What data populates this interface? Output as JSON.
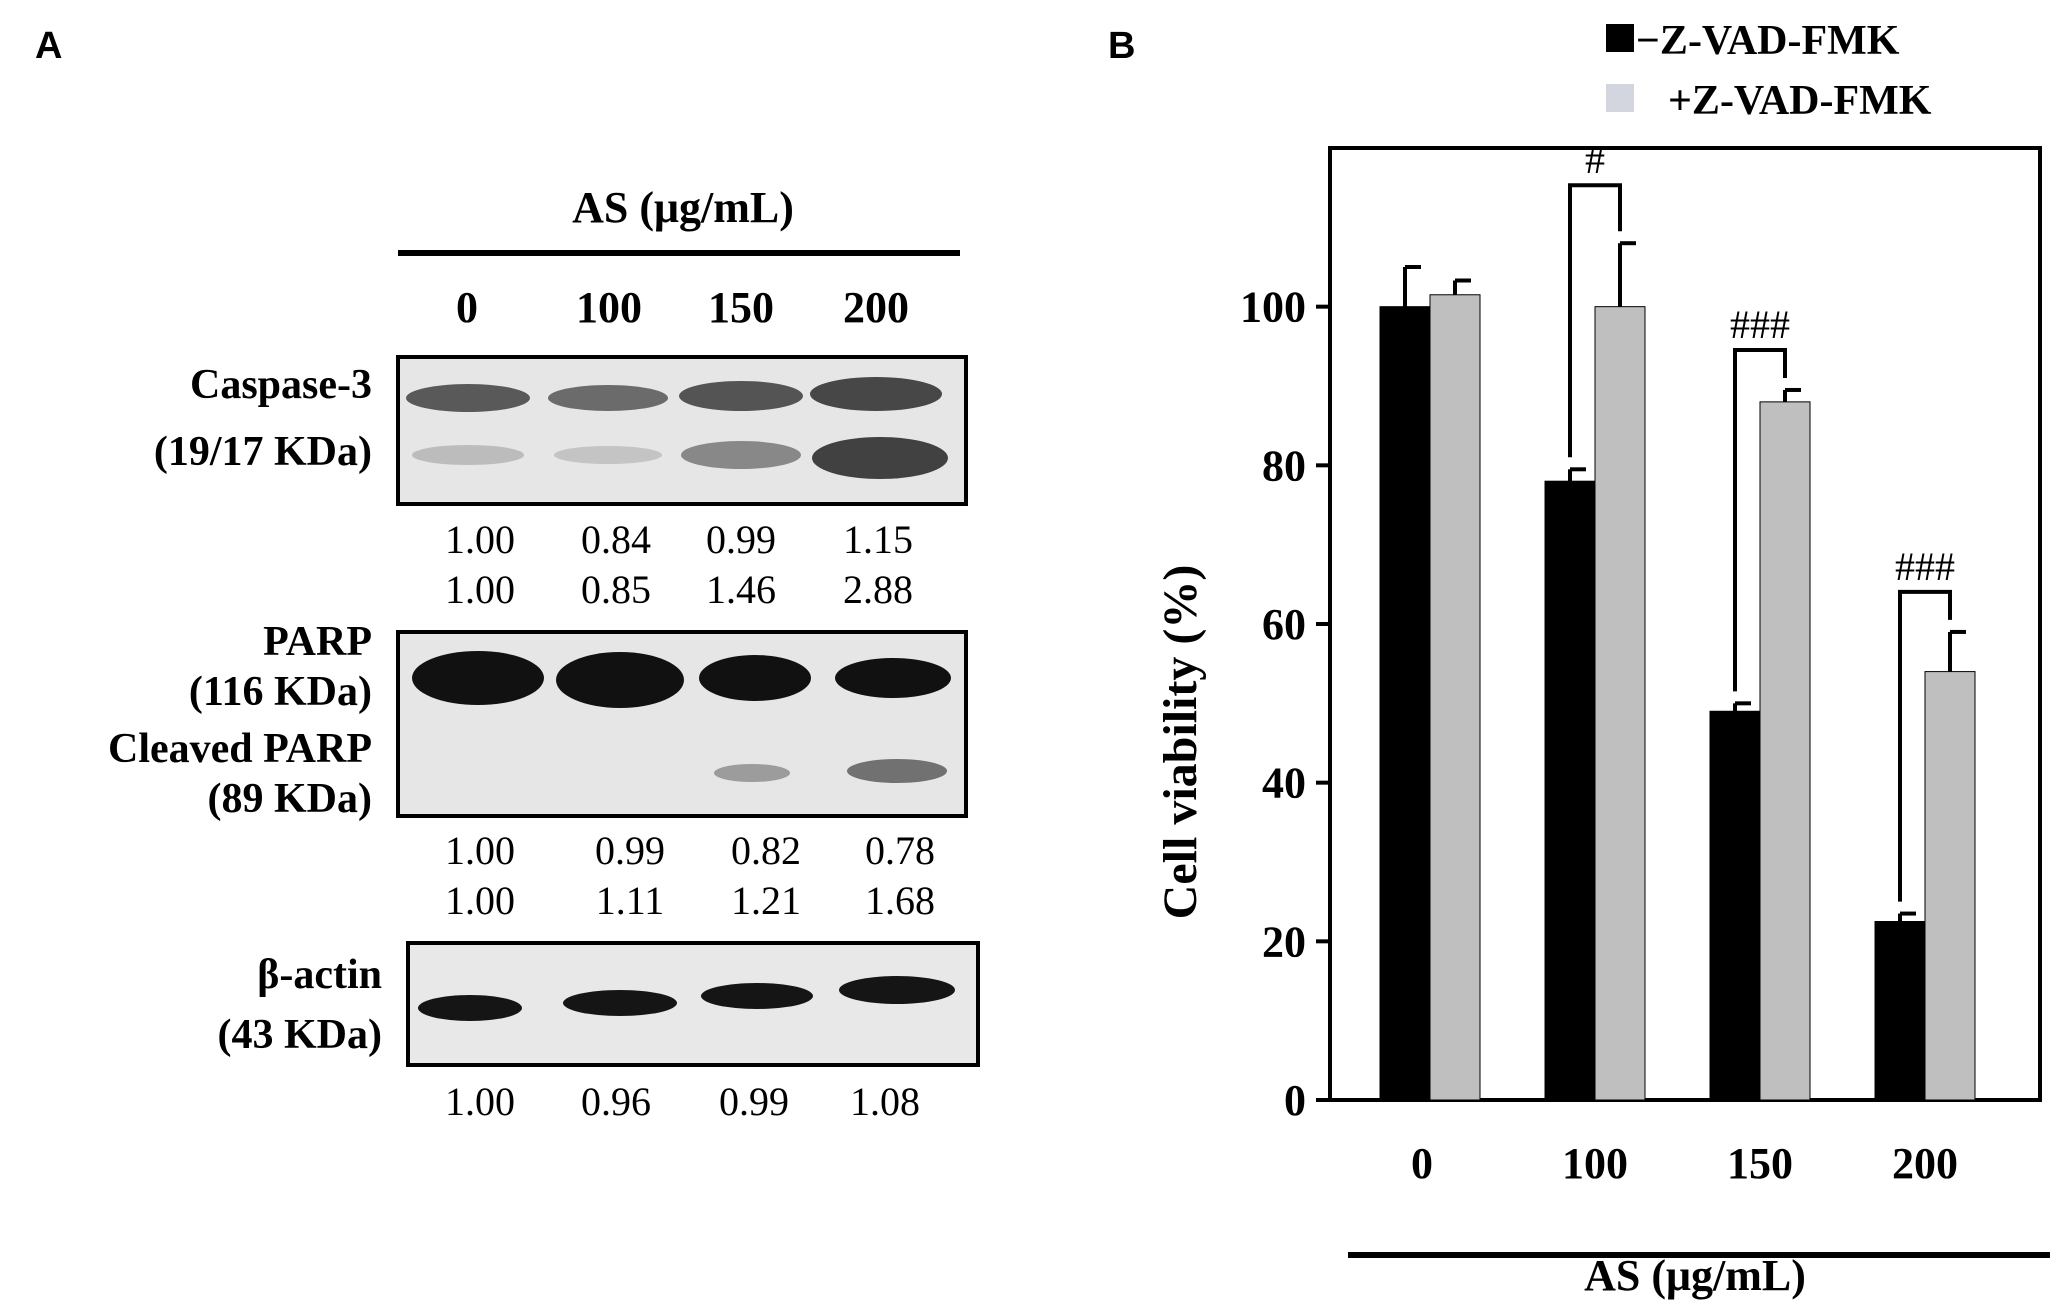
{
  "colors": {
    "ink": "#000000",
    "minus_bar": "#000000",
    "plus_bar": "#bfbfbf",
    "plus_legend_swatch": "#d3d6de",
    "blot_bg": "#e6e6e6",
    "band": "#2a2a2a"
  },
  "panel_a": {
    "label": "A",
    "header": "AS (μg/mL)",
    "lanes": [
      "0",
      "100",
      "150",
      "200"
    ],
    "blots": [
      {
        "id": "caspase3",
        "labels": [
          "Caspase-3",
          "(19/17 KDa)"
        ],
        "quant_rows": [
          [
            "1.00",
            "0.84",
            "0.99",
            "1.15"
          ],
          [
            "1.00",
            "0.85",
            "1.46",
            "2.88"
          ]
        ]
      },
      {
        "id": "parp",
        "labels": [
          "PARP",
          "(116 KDa)",
          "Cleaved PARP",
          "(89 KDa)"
        ],
        "quant_rows": [
          [
            "1.00",
            "0.99",
            "0.82",
            "0.78"
          ],
          [
            "1.00",
            "1.11",
            "1.21",
            "1.68"
          ]
        ]
      },
      {
        "id": "actin",
        "labels": [
          "β-actin",
          "(43 KDa)"
        ],
        "quant_rows": [
          [
            "1.00",
            "0.96",
            "0.99",
            "1.08"
          ]
        ]
      }
    ]
  },
  "chart_data": {
    "type": "bar",
    "panel_label": "B",
    "categories": [
      "0",
      "100",
      "150",
      "200"
    ],
    "xlabel": "AS (μg/mL)",
    "ylabel": "Cell viability  (%)",
    "ylim": [
      0,
      120
    ],
    "yticks": [
      0,
      20,
      40,
      60,
      80,
      100
    ],
    "grid": false,
    "legend_position": "top-right",
    "series": [
      {
        "name": "−Z-VAD-FMK",
        "values": [
          100,
          78,
          49,
          22.5
        ],
        "errors": [
          5,
          1.5,
          1,
          1
        ]
      },
      {
        "name": "+Z-VAD-FMK",
        "values": [
          101.5,
          100,
          88,
          54
        ],
        "errors": [
          1.8,
          8,
          1.5,
          5
        ]
      }
    ],
    "annotations": [
      {
        "category": "100",
        "text": "#"
      },
      {
        "category": "150",
        "text": "###"
      },
      {
        "category": "200",
        "text": "###"
      }
    ]
  }
}
